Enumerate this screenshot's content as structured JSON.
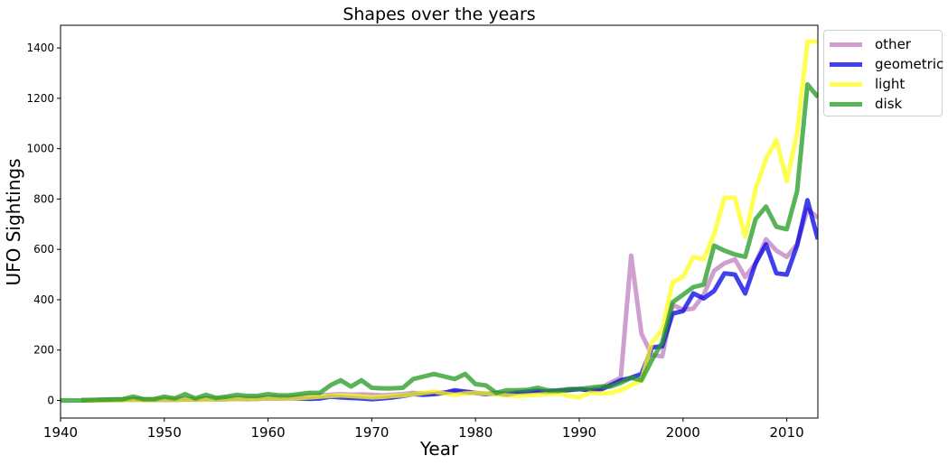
{
  "chart_data": {
    "type": "line",
    "title": "Shapes over the years",
    "xlabel": "Year",
    "ylabel": "UFO Sightings",
    "xlim": [
      1940,
      2013
    ],
    "ylim": [
      -70,
      1490
    ],
    "xticks": [
      1940,
      1950,
      1960,
      1970,
      1980,
      1990,
      2000,
      2010
    ],
    "yticks": [
      0,
      200,
      400,
      600,
      800,
      1000,
      1200,
      1400
    ],
    "grid": false,
    "legend_position": "outside-top-right",
    "series": [
      {
        "name": "other",
        "color": "#bf7fbf",
        "x": [
          1942,
          1944,
          1946,
          1947,
          1948,
          1949,
          1950,
          1951,
          1952,
          1953,
          1954,
          1955,
          1956,
          1957,
          1958,
          1959,
          1960,
          1961,
          1962,
          1963,
          1964,
          1965,
          1966,
          1967,
          1968,
          1969,
          1970,
          1971,
          1972,
          1973,
          1974,
          1975,
          1976,
          1977,
          1978,
          1979,
          1980,
          1981,
          1982,
          1983,
          1984,
          1985,
          1986,
          1987,
          1988,
          1989,
          1990,
          1991,
          1992,
          1993,
          1994,
          1995,
          1996,
          1997,
          1998,
          1999,
          2000,
          2001,
          2002,
          2003,
          2004,
          2005,
          2006,
          2007,
          2008,
          2009,
          2010,
          2011,
          2012,
          2013
        ],
        "values": [
          1,
          2,
          3,
          6,
          3,
          4,
          5,
          5,
          7,
          4,
          8,
          6,
          9,
          10,
          9,
          10,
          12,
          13,
          12,
          15,
          18,
          20,
          22,
          25,
          22,
          24,
          22,
          20,
          22,
          25,
          30,
          28,
          30,
          32,
          35,
          30,
          30,
          27,
          30,
          28,
          32,
          30,
          35,
          32,
          35,
          40,
          45,
          42,
          48,
          70,
          90,
          575,
          265,
          180,
          175,
          380,
          360,
          365,
          420,
          515,
          545,
          560,
          490,
          545,
          640,
          595,
          570,
          620,
          760,
          725
        ]
      },
      {
        "name": "geometric",
        "color": "#0000e6",
        "x": [
          1942,
          1944,
          1946,
          1947,
          1948,
          1949,
          1950,
          1951,
          1952,
          1953,
          1954,
          1955,
          1956,
          1957,
          1958,
          1959,
          1960,
          1961,
          1962,
          1963,
          1964,
          1965,
          1966,
          1967,
          1968,
          1969,
          1970,
          1971,
          1972,
          1973,
          1974,
          1975,
          1976,
          1977,
          1978,
          1979,
          1980,
          1981,
          1982,
          1983,
          1984,
          1985,
          1986,
          1987,
          1988,
          1989,
          1990,
          1991,
          1992,
          1993,
          1994,
          1995,
          1996,
          1997,
          1998,
          1999,
          2000,
          2001,
          2002,
          2003,
          2004,
          2005,
          2006,
          2007,
          2008,
          2009,
          2010,
          2011,
          2012,
          2013
        ],
        "values": [
          1,
          1,
          2,
          3,
          2,
          2,
          3,
          2,
          4,
          3,
          5,
          4,
          5,
          6,
          5,
          6,
          8,
          7,
          9,
          8,
          6,
          8,
          15,
          12,
          10,
          8,
          5,
          8,
          12,
          18,
          25,
          22,
          25,
          30,
          40,
          35,
          30,
          25,
          28,
          22,
          30,
          35,
          38,
          35,
          40,
          42,
          45,
          40,
          42,
          60,
          80,
          90,
          105,
          210,
          215,
          345,
          355,
          425,
          405,
          435,
          505,
          500,
          425,
          545,
          620,
          505,
          500,
          615,
          795,
          640
        ]
      },
      {
        "name": "light",
        "color": "#ffff1a",
        "x": [
          1942,
          1944,
          1946,
          1947,
          1948,
          1949,
          1950,
          1951,
          1952,
          1953,
          1954,
          1955,
          1956,
          1957,
          1958,
          1959,
          1960,
          1961,
          1962,
          1963,
          1964,
          1965,
          1966,
          1967,
          1968,
          1969,
          1970,
          1971,
          1972,
          1973,
          1974,
          1975,
          1976,
          1977,
          1978,
          1979,
          1980,
          1981,
          1982,
          1983,
          1984,
          1985,
          1986,
          1987,
          1988,
          1989,
          1990,
          1991,
          1992,
          1993,
          1994,
          1995,
          1996,
          1997,
          1998,
          1999,
          2000,
          2001,
          2002,
          2003,
          2004,
          2005,
          2006,
          2007,
          2008,
          2009,
          2010,
          2011,
          2012,
          2013
        ],
        "values": [
          0,
          0,
          1,
          2,
          1,
          2,
          3,
          2,
          3,
          2,
          3,
          4,
          5,
          6,
          5,
          6,
          8,
          7,
          9,
          10,
          12,
          15,
          18,
          20,
          18,
          15,
          12,
          14,
          18,
          20,
          25,
          30,
          35,
          28,
          22,
          28,
          30,
          28,
          25,
          20,
          18,
          20,
          22,
          25,
          28,
          18,
          12,
          30,
          28,
          30,
          40,
          60,
          80,
          230,
          280,
          470,
          490,
          570,
          560,
          660,
          805,
          805,
          650,
          840,
          960,
          1035,
          870,
          1060,
          1425,
          1425
        ]
      },
      {
        "name": "disk",
        "color": "#229922",
        "x": [
          1940,
          1942,
          1944,
          1946,
          1947,
          1948,
          1949,
          1950,
          1951,
          1952,
          1953,
          1954,
          1955,
          1956,
          1957,
          1958,
          1959,
          1960,
          1961,
          1962,
          1963,
          1964,
          1965,
          1966,
          1967,
          1968,
          1969,
          1970,
          1971,
          1972,
          1973,
          1974,
          1975,
          1976,
          1977,
          1978,
          1979,
          1980,
          1981,
          1982,
          1983,
          1984,
          1985,
          1986,
          1987,
          1988,
          1989,
          1990,
          1991,
          1992,
          1993,
          1994,
          1995,
          1996,
          1997,
          1998,
          1999,
          2000,
          2001,
          2002,
          2003,
          2004,
          2005,
          2006,
          2007,
          2008,
          2009,
          2010,
          2011,
          2012,
          2013
        ],
        "values": [
          0,
          0,
          3,
          5,
          15,
          5,
          5,
          15,
          8,
          25,
          8,
          22,
          10,
          15,
          22,
          18,
          18,
          25,
          20,
          20,
          25,
          30,
          30,
          60,
          80,
          55,
          80,
          50,
          48,
          48,
          50,
          85,
          95,
          105,
          95,
          85,
          105,
          65,
          60,
          30,
          40,
          40,
          42,
          50,
          40,
          38,
          45,
          45,
          50,
          55,
          55,
          70,
          90,
          80,
          160,
          230,
          390,
          420,
          450,
          460,
          615,
          595,
          580,
          570,
          720,
          770,
          690,
          680,
          830,
          1255,
          1205
        ]
      }
    ]
  }
}
